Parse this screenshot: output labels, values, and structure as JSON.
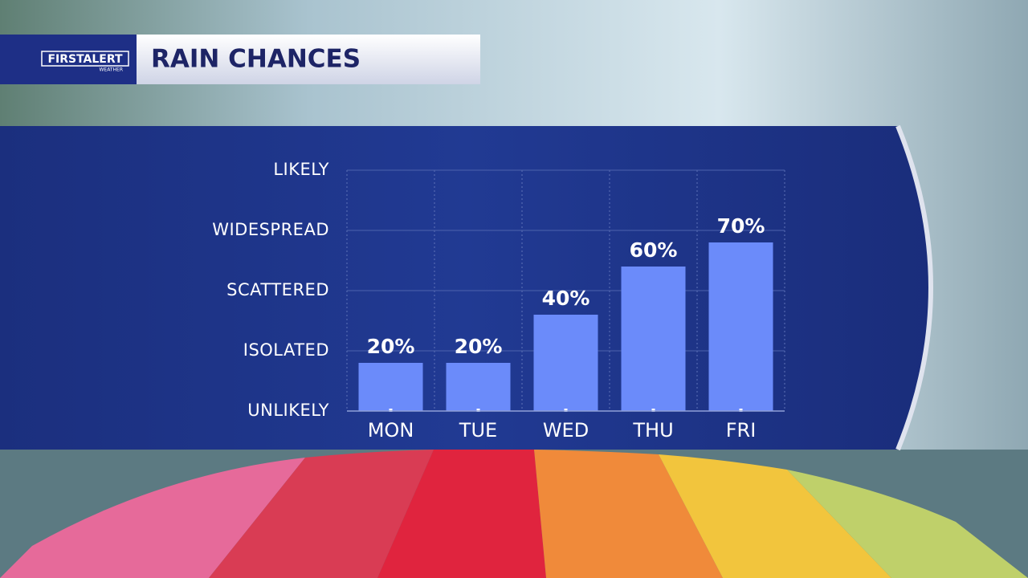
{
  "brand": "FIRSTALERT",
  "brand_sub": "WEATHER",
  "chart_data": {
    "type": "bar",
    "title": "RAIN CHANCES",
    "categories": [
      "MON",
      "TUE",
      "WED",
      "THU",
      "FRI"
    ],
    "values": [
      20,
      20,
      40,
      60,
      70
    ],
    "value_labels": [
      "20%",
      "20%",
      "40%",
      "60%",
      "70%"
    ],
    "color": "#6b8bfa",
    "ylim": [
      0,
      100
    ],
    "yticks": [
      {
        "value": 0,
        "label": "UNLIKELY"
      },
      {
        "value": 25,
        "label": "ISOLATED"
      },
      {
        "value": 50,
        "label": "SCATTERED"
      },
      {
        "value": 75,
        "label": "WIDESPREAD"
      },
      {
        "value": 100,
        "label": "LIKELY"
      }
    ],
    "grid": true
  }
}
